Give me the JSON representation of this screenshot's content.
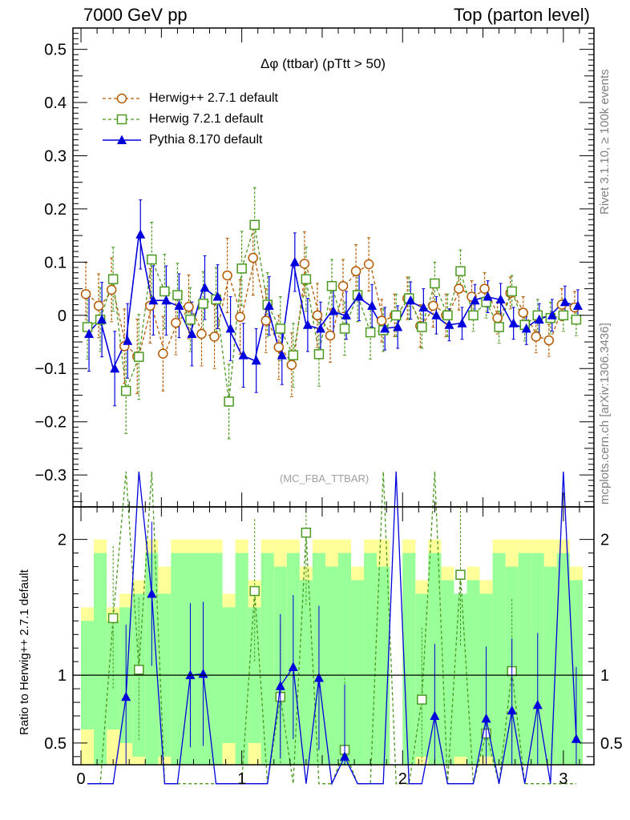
{
  "header": {
    "left": "7000 GeV pp",
    "right": "Top (parton level)"
  },
  "side_labels": {
    "rivet": "Rivet 3.1.10, ≥ 100k events",
    "mcplots": "mcplots.cern.ch [arXiv:1306.3436]"
  },
  "chart_data": {
    "type": "scatter",
    "title": "Δφ (ttbar) (pTtt > 50)",
    "watermark": "(MC_FBA_TTBAR)",
    "xlim": [
      -0.05,
      3.19
    ],
    "xticks": [
      0,
      1,
      2,
      3
    ],
    "ylim": [
      -0.36,
      0.54
    ],
    "yticks": [
      -0.3,
      -0.2,
      -0.1,
      0,
      0.1,
      0.2,
      0.3,
      0.4,
      0.5
    ],
    "ratio_ylabel": "Ratio to Herwig++ 2.7.1 default",
    "ratio_ylim": [
      0.34,
      2.24
    ],
    "ratio_yticks": [
      0.5,
      1,
      2
    ],
    "legend_position": "top-left",
    "x": [
      0.04,
      0.12,
      0.2,
      0.28,
      0.36,
      0.44,
      0.52,
      0.6,
      0.68,
      0.76,
      0.84,
      0.92,
      1.0,
      1.08,
      1.16,
      1.24,
      1.32,
      1.4,
      1.48,
      1.56,
      1.64,
      1.72,
      1.8,
      1.88,
      1.96,
      2.04,
      2.12,
      2.2,
      2.28,
      2.36,
      2.44,
      2.52,
      2.6,
      2.68,
      2.76,
      2.84,
      2.92,
      3.0,
      3.08
    ],
    "series": [
      {
        "name": "Herwig++ 2.7.1 default",
        "color": "#b35900",
        "marker": "circle",
        "linestyle": "dashed",
        "values": [
          0.04,
          0.018,
          0.048,
          -0.058,
          -0.077,
          0.018,
          -0.072,
          -0.014,
          0.016,
          -0.035,
          -0.04,
          0.075,
          -0.003,
          0.108,
          -0.01,
          -0.06,
          -0.093,
          0.097,
          0.0,
          -0.038,
          0.055,
          0.083,
          0.096,
          -0.01,
          0.0,
          0.032,
          -0.02,
          0.018,
          0.0,
          0.05,
          0.035,
          0.05,
          -0.005,
          0.042,
          0.005,
          -0.04,
          -0.047,
          0.02,
          0.015
        ],
        "errors": [
          0.06,
          0.06,
          0.06,
          0.07,
          0.07,
          0.07,
          0.07,
          0.06,
          0.06,
          0.06,
          0.06,
          0.07,
          0.07,
          0.07,
          0.06,
          0.06,
          0.06,
          0.06,
          0.06,
          0.05,
          0.05,
          0.05,
          0.05,
          0.04,
          0.04,
          0.04,
          0.04,
          0.04,
          0.04,
          0.04,
          0.03,
          0.03,
          0.03,
          0.03,
          0.03,
          0.03,
          0.03,
          0.03,
          0.03
        ]
      },
      {
        "name": "Herwig 7.2.1 default",
        "color": "#4a9a1f",
        "marker": "square",
        "linestyle": "dashed",
        "values": [
          -0.022,
          -0.008,
          0.068,
          -0.142,
          -0.078,
          0.105,
          0.045,
          0.038,
          -0.008,
          0.022,
          0.03,
          -0.162,
          0.088,
          0.17,
          0.02,
          -0.025,
          -0.075,
          0.068,
          -0.073,
          0.055,
          -0.025,
          0.038,
          -0.032,
          -0.028,
          0.0,
          0.032,
          -0.022,
          0.06,
          0.0,
          0.083,
          0.0,
          0.025,
          -0.022,
          0.045,
          -0.018,
          0.0,
          -0.005,
          0.0,
          -0.008
        ],
        "errors": [
          0.06,
          0.06,
          0.06,
          0.08,
          0.08,
          0.07,
          0.07,
          0.06,
          0.06,
          0.06,
          0.06,
          0.07,
          0.07,
          0.07,
          0.06,
          0.06,
          0.06,
          0.06,
          0.06,
          0.05,
          0.05,
          0.05,
          0.05,
          0.04,
          0.04,
          0.04,
          0.04,
          0.04,
          0.04,
          0.04,
          0.03,
          0.03,
          0.03,
          0.03,
          0.03,
          0.03,
          0.03,
          0.03,
          0.03
        ]
      },
      {
        "name": "Pythia 8.170 default",
        "color": "#0000dd",
        "marker": "triangle",
        "linestyle": "solid",
        "values": [
          -0.035,
          -0.008,
          -0.1,
          -0.048,
          0.152,
          0.028,
          0.028,
          0.018,
          -0.035,
          0.052,
          0.035,
          -0.025,
          -0.075,
          -0.085,
          0.018,
          -0.075,
          0.1,
          -0.018,
          -0.025,
          0.008,
          0.0,
          0.035,
          0.018,
          -0.025,
          -0.022,
          0.028,
          0.015,
          0.0,
          -0.018,
          -0.015,
          0.028,
          0.035,
          0.03,
          -0.015,
          -0.025,
          -0.008,
          0.0,
          0.025,
          0.018
        ],
        "errors": [
          0.07,
          0.07,
          0.07,
          0.07,
          0.065,
          0.065,
          0.065,
          0.06,
          0.06,
          0.06,
          0.06,
          0.06,
          0.06,
          0.06,
          0.055,
          0.055,
          0.055,
          0.05,
          0.05,
          0.045,
          0.045,
          0.045,
          0.04,
          0.04,
          0.04,
          0.035,
          0.035,
          0.035,
          0.03,
          0.03,
          0.03,
          0.03,
          0.03,
          0.03,
          0.03,
          0.03,
          0.03,
          0.03,
          0.03
        ]
      }
    ],
    "ratio": {
      "green_band": [
        0.4,
        0.9,
        0.4,
        0.5,
        0.6,
        0.9,
        0.6,
        0.9,
        0.9,
        0.9,
        0.9,
        0.5,
        0.9,
        0.5,
        0.9,
        0.8,
        0.9,
        0.7,
        0.9,
        0.8,
        0.9,
        0.7,
        0.9,
        0.8,
        0.0,
        0.9,
        0.6,
        0.9,
        0.7,
        0.6,
        0.7,
        0.6,
        0.9,
        0.8,
        0.9,
        0.9,
        0.8,
        0.9,
        0.7
      ],
      "yellow_band": [
        1.5,
        2.0,
        1.5,
        1.6,
        1.7,
        2.0,
        1.8,
        2.0,
        2.0,
        2.0,
        2.0,
        1.6,
        2.0,
        1.7,
        2.0,
        2.0,
        2.0,
        1.8,
        2.0,
        2.0,
        2.0,
        1.8,
        2.0,
        2.0,
        0.0,
        2.0,
        1.7,
        2.0,
        1.8,
        1.6,
        1.8,
        1.7,
        2.0,
        2.0,
        2.0,
        2.0,
        2.0,
        2.0,
        1.8
      ],
      "herwig7": [
        0.2,
        0.2,
        1.42,
        2.5,
        1.04,
        2.5,
        0.2,
        0.2,
        0.2,
        0.2,
        0.2,
        0.2,
        0.2,
        1.62,
        0.2,
        0.84,
        0.2,
        2.05,
        0.2,
        0.2,
        0.45,
        0.2,
        0.2,
        2.5,
        0.2,
        0.2,
        0.82,
        2.5,
        0.2,
        1.74,
        0.2,
        0.57,
        0.2,
        1.03,
        0.2,
        0.2,
        0.2,
        0.2,
        0.2
      ],
      "pythia": [
        0.2,
        0.2,
        0.2,
        0.84,
        2.5,
        1.6,
        0.2,
        0.2,
        1.0,
        1.01,
        0.2,
        0.2,
        0.2,
        0.2,
        0.2,
        0.92,
        1.06,
        0.2,
        0.98,
        0.2,
        0.4,
        0.2,
        0.2,
        0.2,
        2.5,
        0.2,
        0.2,
        0.7,
        0.2,
        0.2,
        0.2,
        0.68,
        0.2,
        0.74,
        0.2,
        0.78,
        0.2,
        2.5,
        0.53
      ]
    }
  }
}
